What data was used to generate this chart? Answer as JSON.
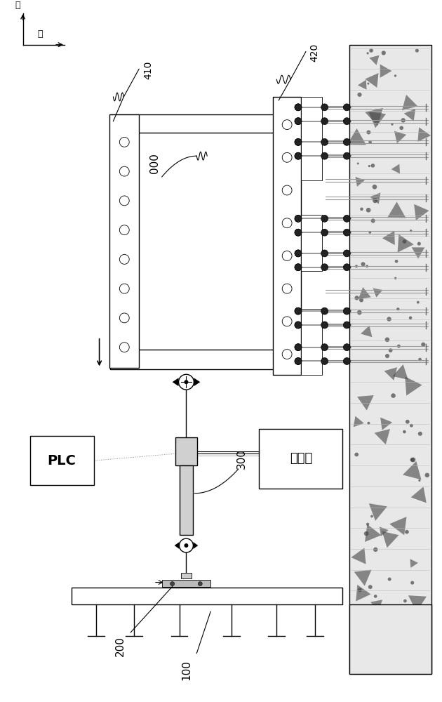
{
  "bg": "#ffffff",
  "lc": "#000000",
  "gray": "#888888",
  "dgray": "#555555",
  "lgray": "#cccccc",
  "concrete_fill": "#e8e8e8",
  "plate_fill": "#ffffff",
  "actuator_fill": "#d0d0d0",
  "dir_up": "上",
  "dir_left": "左",
  "label_410": "410",
  "label_420": "420",
  "label_000": "000",
  "label_300": "300",
  "label_200": "200",
  "label_100": "100",
  "label_PLC": "PLC",
  "label_hyd": "液压站"
}
